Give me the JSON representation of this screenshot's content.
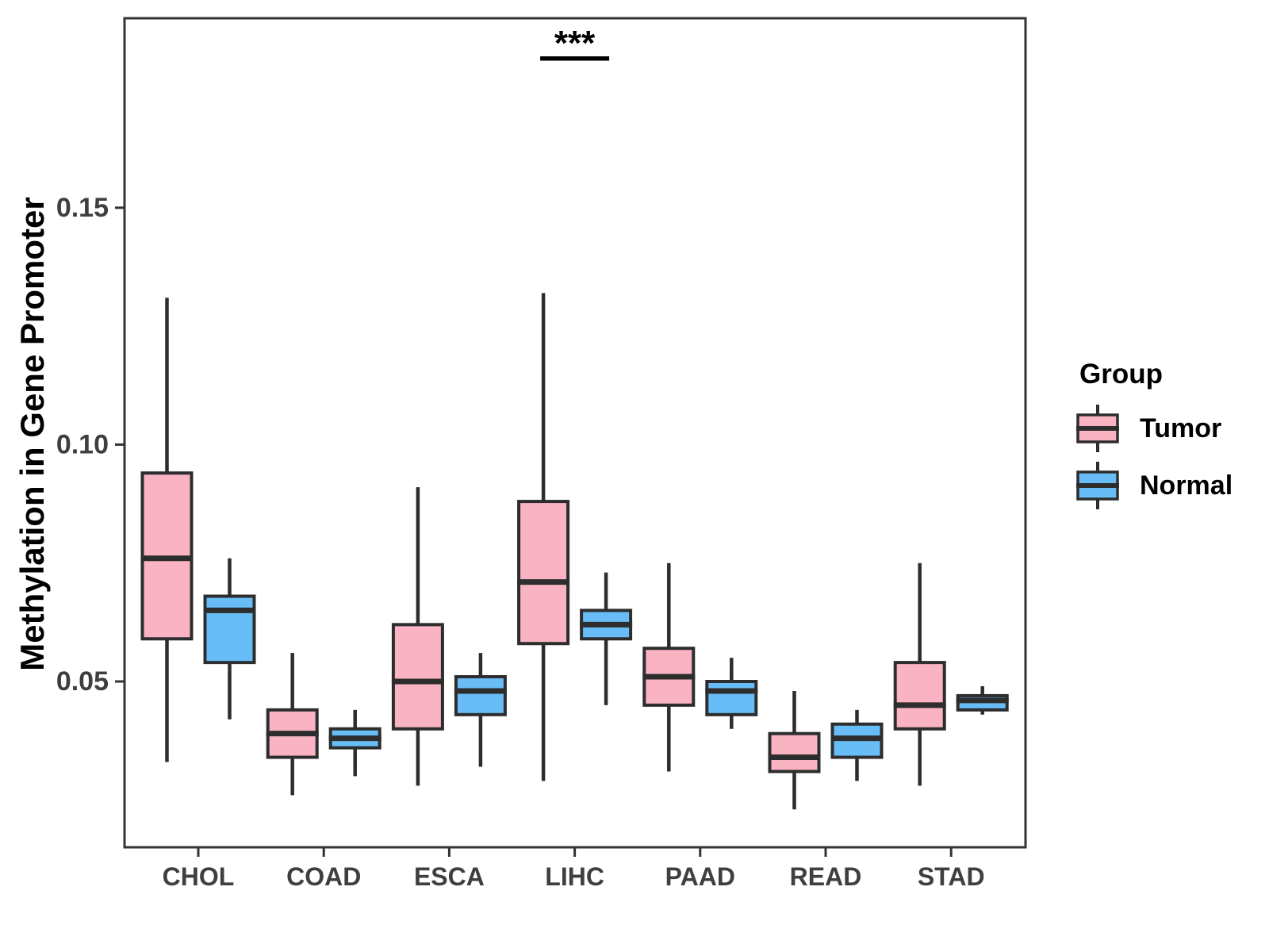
{
  "figure": {
    "background": "#FFFFFF",
    "panel_border_color": "#333333",
    "axis_text_color": "#3F3F3F",
    "box_border_color": "#2D2D2D",
    "annotation_color": "#000000"
  },
  "chart_data": {
    "type": "grouped_boxplot",
    "title": "",
    "xlabel": "",
    "ylabel": "Methylation in Gene Promoter",
    "categories": [
      "CHOL",
      "COAD",
      "ESCA",
      "LIHC",
      "PAAD",
      "READ",
      "STAD"
    ],
    "ylim": [
      0.015,
      0.19
    ],
    "ytick_values": [
      0.05,
      0.1,
      0.15
    ],
    "ytick_labels": [
      "0.05",
      "0.10",
      "0.15"
    ],
    "grid": "off",
    "legend": {
      "title": "Group",
      "position": "right",
      "entries": [
        {
          "label": "Tumor",
          "color": "#F9B3C2"
        },
        {
          "label": "Normal",
          "color": "#69BDF6"
        }
      ]
    },
    "series": [
      {
        "name": "Tumor",
        "color": "#F9B3C2",
        "boxes": [
          {
            "category": "CHOL",
            "low": 0.033,
            "q1": 0.059,
            "median": 0.076,
            "q3": 0.094,
            "high": 0.131
          },
          {
            "category": "COAD",
            "low": 0.026,
            "q1": 0.034,
            "median": 0.039,
            "q3": 0.044,
            "high": 0.056
          },
          {
            "category": "ESCA",
            "low": 0.028,
            "q1": 0.04,
            "median": 0.05,
            "q3": 0.062,
            "high": 0.091
          },
          {
            "category": "LIHC",
            "low": 0.029,
            "q1": 0.058,
            "median": 0.071,
            "q3": 0.088,
            "high": 0.132
          },
          {
            "category": "PAAD",
            "low": 0.031,
            "q1": 0.045,
            "median": 0.051,
            "q3": 0.057,
            "high": 0.075
          },
          {
            "category": "READ",
            "low": 0.023,
            "q1": 0.031,
            "median": 0.034,
            "q3": 0.039,
            "high": 0.048
          },
          {
            "category": "STAD",
            "low": 0.028,
            "q1": 0.04,
            "median": 0.045,
            "q3": 0.054,
            "high": 0.075
          }
        ]
      },
      {
        "name": "Normal",
        "color": "#69BDF6",
        "boxes": [
          {
            "category": "CHOL",
            "low": 0.042,
            "q1": 0.054,
            "median": 0.065,
            "q3": 0.068,
            "high": 0.076
          },
          {
            "category": "COAD",
            "low": 0.03,
            "q1": 0.036,
            "median": 0.038,
            "q3": 0.04,
            "high": 0.044
          },
          {
            "category": "ESCA",
            "low": 0.032,
            "q1": 0.043,
            "median": 0.048,
            "q3": 0.051,
            "high": 0.056
          },
          {
            "category": "LIHC",
            "low": 0.045,
            "q1": 0.059,
            "median": 0.062,
            "q3": 0.065,
            "high": 0.073
          },
          {
            "category": "PAAD",
            "low": 0.04,
            "q1": 0.043,
            "median": 0.048,
            "q3": 0.05,
            "high": 0.055
          },
          {
            "category": "READ",
            "low": 0.029,
            "q1": 0.034,
            "median": 0.038,
            "q3": 0.041,
            "high": 0.044
          },
          {
            "category": "STAD",
            "low": 0.043,
            "q1": 0.044,
            "median": 0.046,
            "q3": 0.047,
            "high": 0.049
          }
        ]
      }
    ],
    "annotation": {
      "text": "***",
      "category": "LIHC",
      "spans": [
        "Tumor",
        "Normal"
      ],
      "bar_y": 0.1815,
      "meaning": "significance bracket"
    }
  }
}
